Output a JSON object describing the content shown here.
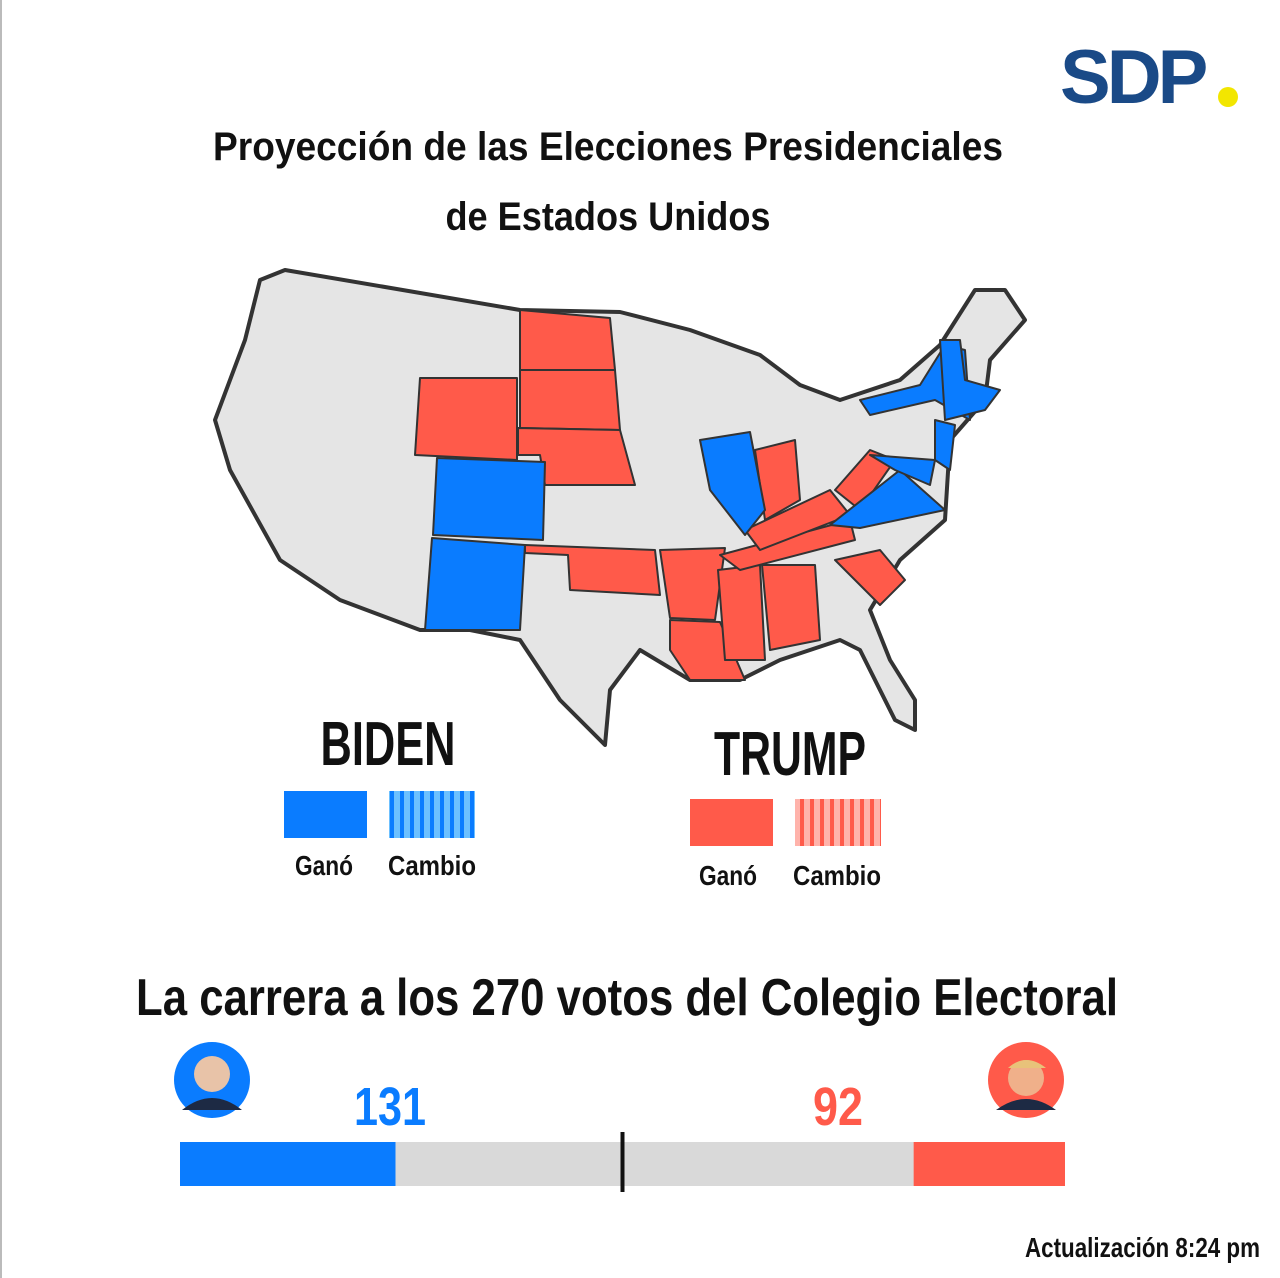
{
  "logo": "SDP",
  "header": {
    "title_line1": "Proyección de las Elecciones Presidenciales",
    "title_line2": "de Estados Unidos"
  },
  "legend": {
    "biden": {
      "name": "BIDEN",
      "won": "Ganó",
      "change": "Cambio",
      "color": "#0a7cff"
    },
    "trump": {
      "name": "TRUMP",
      "won": "Ganó",
      "change": "Cambio",
      "color": "#ff5a4a"
    }
  },
  "race": {
    "title": "La carrera a los 270 votos del Colegio Electoral",
    "xlim": [
      0,
      538
    ],
    "biden": {
      "votes": 131,
      "color": "#0a7cff"
    },
    "trump": {
      "votes": 92,
      "color": "#ff5a4a"
    }
  },
  "footer": "Actualización 8:24 pm"
}
